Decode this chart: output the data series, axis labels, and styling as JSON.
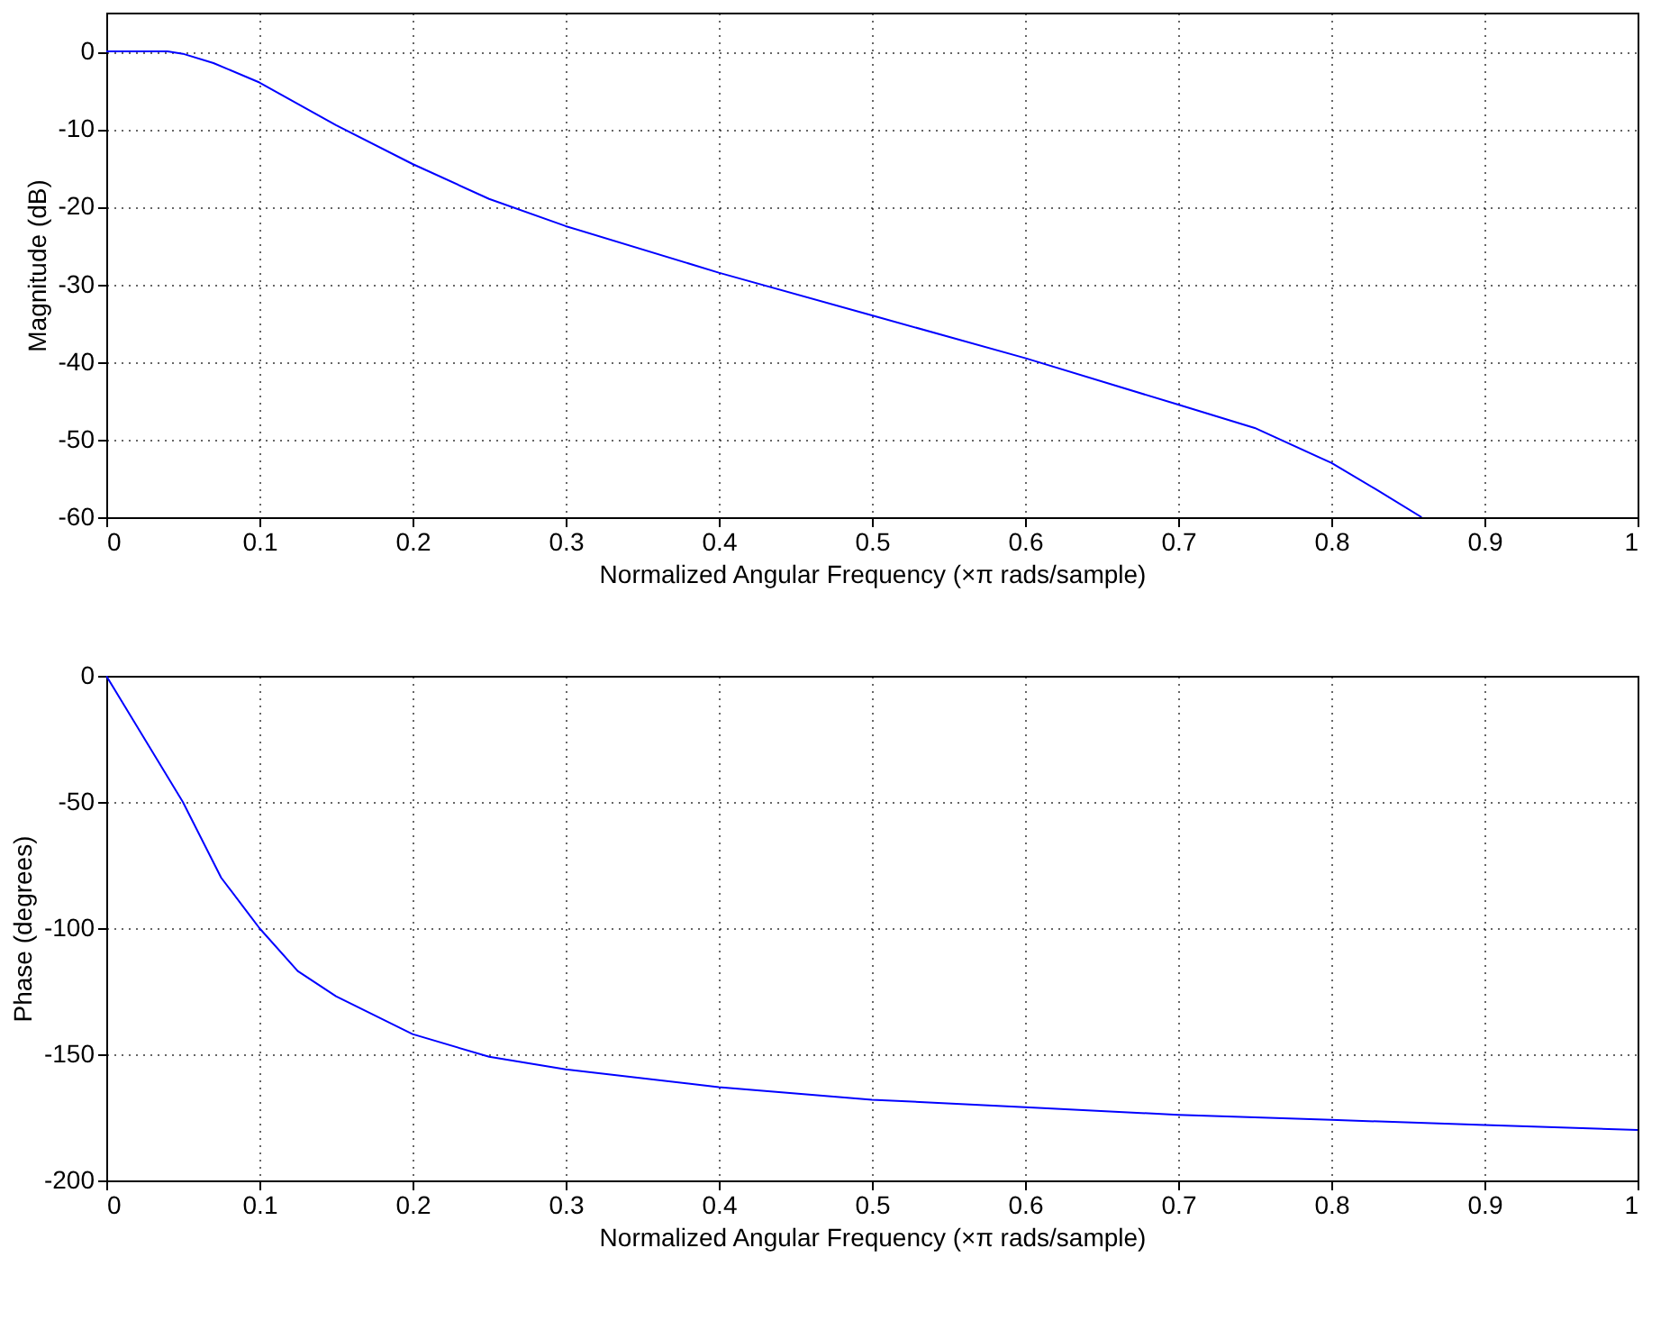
{
  "chart_data": [
    {
      "type": "line",
      "xlabel": "Normalized Angular Frequency  (×π rads/sample)",
      "ylabel": "Magnitude (dB)",
      "xlim": [
        0,
        1
      ],
      "xticks": [
        0,
        0.1,
        0.2,
        0.3,
        0.4,
        0.5,
        0.6,
        0.7,
        0.8,
        0.9,
        1
      ],
      "ylim": [
        -60,
        5
      ],
      "yticks": [
        -60,
        -50,
        -40,
        -30,
        -20,
        -10,
        0
      ],
      "grid": true,
      "x": [
        0,
        0.02,
        0.04,
        0.05,
        0.07,
        0.1,
        0.15,
        0.2,
        0.25,
        0.3,
        0.4,
        0.5,
        0.6,
        0.7,
        0.75,
        0.8,
        0.83,
        0.859
      ],
      "series": [
        {
          "color": "#0000ff",
          "values": [
            0,
            0,
            0,
            -0.3,
            -1.5,
            -4,
            -9.5,
            -14.5,
            -19,
            -22.5,
            -28.5,
            -34,
            -39.5,
            -45.5,
            -48.5,
            -53,
            -56.5,
            -60
          ]
        }
      ]
    },
    {
      "type": "line",
      "xlabel": "Normalized Angular Frequency  (×π rads/sample)",
      "ylabel": "Phase (degrees)",
      "xlim": [
        0,
        1
      ],
      "xticks": [
        0,
        0.1,
        0.2,
        0.3,
        0.4,
        0.5,
        0.6,
        0.7,
        0.8,
        0.9,
        1
      ],
      "ylim": [
        -200,
        0
      ],
      "yticks": [
        -200,
        -150,
        -100,
        -50,
        0
      ],
      "grid": true,
      "x": [
        0,
        0.02,
        0.05,
        0.075,
        0.1,
        0.125,
        0.15,
        0.2,
        0.25,
        0.3,
        0.4,
        0.5,
        0.6,
        0.7,
        0.8,
        0.9,
        1
      ],
      "series": [
        {
          "color": "#0000ff",
          "values": [
            0,
            -20,
            -50,
            -80,
            -100,
            -117,
            -127,
            -142,
            -151,
            -156,
            -163,
            -168,
            -171,
            -174,
            -176,
            -178,
            -180
          ]
        }
      ]
    }
  ]
}
